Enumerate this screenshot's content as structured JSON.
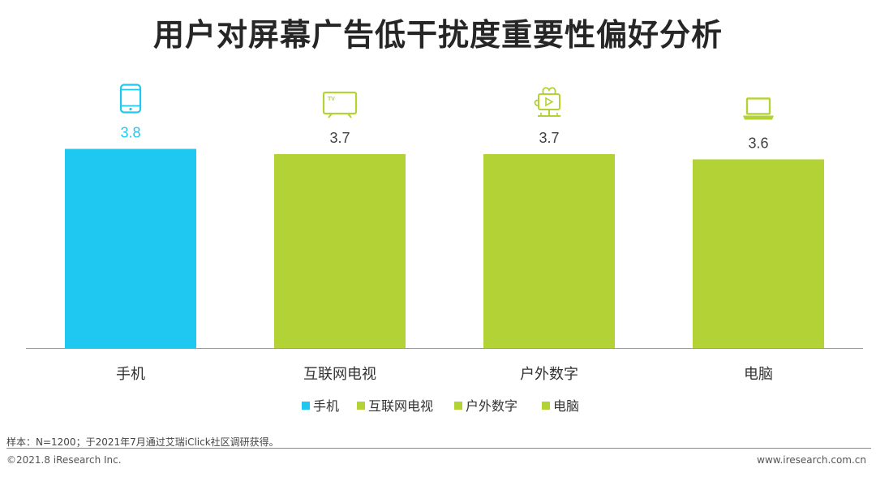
{
  "title": "用户对屏幕广告低干扰度重要性偏好分析",
  "chart_data": {
    "type": "bar",
    "categories": [
      "手机",
      "互联网电视",
      "户外数字",
      "电脑"
    ],
    "values": [
      3.8,
      3.7,
      3.7,
      3.6
    ],
    "value_labels": [
      "3.8",
      "3.7",
      "3.7",
      "3.6"
    ],
    "category_icons": [
      "phone-icon",
      "tv-icon",
      "outdoor-screen-icon",
      "laptop-icon"
    ],
    "colors": [
      "#1ec8f0",
      "#b2d235",
      "#b2d235",
      "#b2d235"
    ],
    "value_label_colors": [
      "#1ec8f0",
      "#404040",
      "#404040",
      "#404040"
    ],
    "icon_colors": [
      "#1ec8f0",
      "#b2d235",
      "#b2d235",
      "#b2d235"
    ],
    "legend": [
      {
        "label": "手机",
        "color": "#1ec8f0"
      },
      {
        "label": "互联网电视",
        "color": "#b2d235"
      },
      {
        "label": "户外数字",
        "color": "#b2d235"
      },
      {
        "label": "电脑",
        "color": "#b2d235"
      }
    ],
    "legend_position": "bottom",
    "xlabel": "",
    "ylabel": "",
    "grid": false,
    "y_axis_visible": false
  },
  "footer": {
    "source": "样本：N=1200；于2021年7月通过艾瑞iClick社区调研获得。",
    "copyright": "©2021.8 iResearch Inc.",
    "website": "www.iresearch.com.cn"
  }
}
